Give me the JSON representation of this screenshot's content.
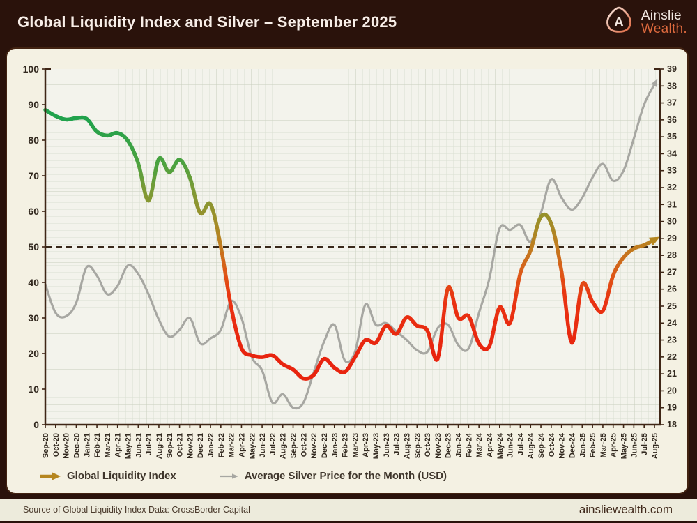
{
  "header": {
    "title": "Global Liquidity Index and Silver – September 2025",
    "brand": {
      "letter": "A",
      "line1": "Ainslie",
      "line2": "Wealth."
    }
  },
  "legend": [
    {
      "label": "Global Liquidity Index",
      "color": "#b5861f"
    },
    {
      "label": "Average Silver Price for the Month (USD)",
      "color": "#a7a7a2"
    }
  ],
  "footer": {
    "source": "Source of Global Liquidity Index Data: CrossBorder Capital",
    "website": "ainsliewealth.com"
  },
  "colors": {
    "page_bg": "#2a120b",
    "card_bg": "#f4f1e3",
    "plot_bg": "#f3f3ec",
    "grid_minor": "#dadfd2",
    "grid_major": "#c7cebc",
    "axis": "#3f2616",
    "tick_label": "#332a20",
    "reference_line": "#38281a",
    "silver_line": "#a7a7a2",
    "accent_orange": "#de6a3e"
  },
  "chart_data": {
    "type": "line",
    "categories": [
      "Sep-20",
      "Oct-20",
      "Nov-20",
      "Dec-20",
      "Jan-21",
      "Feb-21",
      "Mar-21",
      "Apr-21",
      "May-21",
      "Jun-21",
      "Jul-21",
      "Aug-21",
      "Sep-21",
      "Oct-21",
      "Nov-21",
      "Dec-21",
      "Jan-22",
      "Feb-22",
      "Mar-22",
      "Apr-22",
      "May-22",
      "Jun-22",
      "Jul-22",
      "Aug-22",
      "Sep-22",
      "Oct-22",
      "Nov-22",
      "Dec-22",
      "Jan-23",
      "Feb-23",
      "Mar-23",
      "Apr-23",
      "May-23",
      "Jun-23",
      "Jul-23",
      "Aug-23",
      "Sep-23",
      "Oct-23",
      "Nov-23",
      "Dec-23",
      "Jan-24",
      "Feb-24",
      "Mar-24",
      "Apr-24",
      "May-24",
      "Jun-24",
      "Jul-24",
      "Aug-24",
      "Sep-24",
      "Oct-24",
      "Nov-24",
      "Dec-24",
      "Jan-25",
      "Feb-25",
      "Mar-25",
      "Apr-25",
      "May-25",
      "Jun-25",
      "Jul-25",
      "Aug-25"
    ],
    "series": [
      {
        "name": "Global Liquidity Index",
        "axis": "left",
        "values": [
          88.5,
          86.8,
          85.8,
          86.2,
          86.0,
          82.4,
          81.3,
          82.0,
          79.8,
          73.5,
          63.0,
          74.8,
          71.0,
          74.5,
          69.5,
          59.5,
          62.0,
          50.0,
          33.0,
          21.5,
          19.5,
          19.0,
          19.5,
          17.0,
          15.5,
          13.0,
          14.0,
          18.5,
          16.0,
          14.8,
          19.0,
          23.8,
          23.0,
          27.8,
          25.5,
          30.2,
          27.8,
          26.5,
          18.5,
          38.5,
          30.0,
          30.5,
          22.8,
          22.0,
          33.0,
          28.5,
          42.5,
          49.0,
          58.5,
          56.5,
          43.0,
          23.0,
          39.5,
          34.5,
          32.0,
          42.0,
          47.0,
          49.5,
          50.5,
          52.0
        ]
      },
      {
        "name": "Average Silver Price for the Month (USD)",
        "axis": "right",
        "values": [
          26.3,
          24.6,
          24.4,
          25.2,
          27.3,
          26.8,
          25.7,
          26.2,
          27.4,
          26.9,
          25.7,
          24.2,
          23.2,
          23.6,
          24.3,
          22.8,
          23.1,
          23.6,
          25.3,
          24.3,
          22.0,
          21.2,
          19.3,
          19.8,
          19.0,
          19.3,
          21.1,
          22.9,
          23.9,
          21.8,
          22.3,
          25.1,
          23.9,
          24.0,
          23.5,
          23.0,
          22.4,
          22.3,
          23.7,
          23.9,
          22.7,
          22.5,
          24.6,
          26.6,
          29.6,
          29.5,
          29.8,
          28.8,
          30.5,
          32.5,
          31.4,
          30.7,
          31.4,
          32.6,
          33.4,
          32.4,
          33.0,
          34.9,
          36.9,
          38.1
        ]
      }
    ],
    "left_axis": {
      "min": 0,
      "max": 100,
      "step": 10
    },
    "right_axis": {
      "min": 18,
      "max": 39,
      "step": 1
    },
    "reference_line": {
      "axis": "left",
      "value": 50,
      "style": "dashed"
    },
    "grid": true,
    "legend_position": "bottom",
    "gli_color_stops": [
      [
        20,
        "#e8240f"
      ],
      [
        35,
        "#e93312"
      ],
      [
        42,
        "#df5617"
      ],
      [
        50,
        "#c07d1f"
      ],
      [
        58,
        "#9a902a"
      ],
      [
        65,
        "#809934"
      ],
      [
        73,
        "#4da23f"
      ],
      [
        85,
        "#21a24c"
      ]
    ]
  }
}
